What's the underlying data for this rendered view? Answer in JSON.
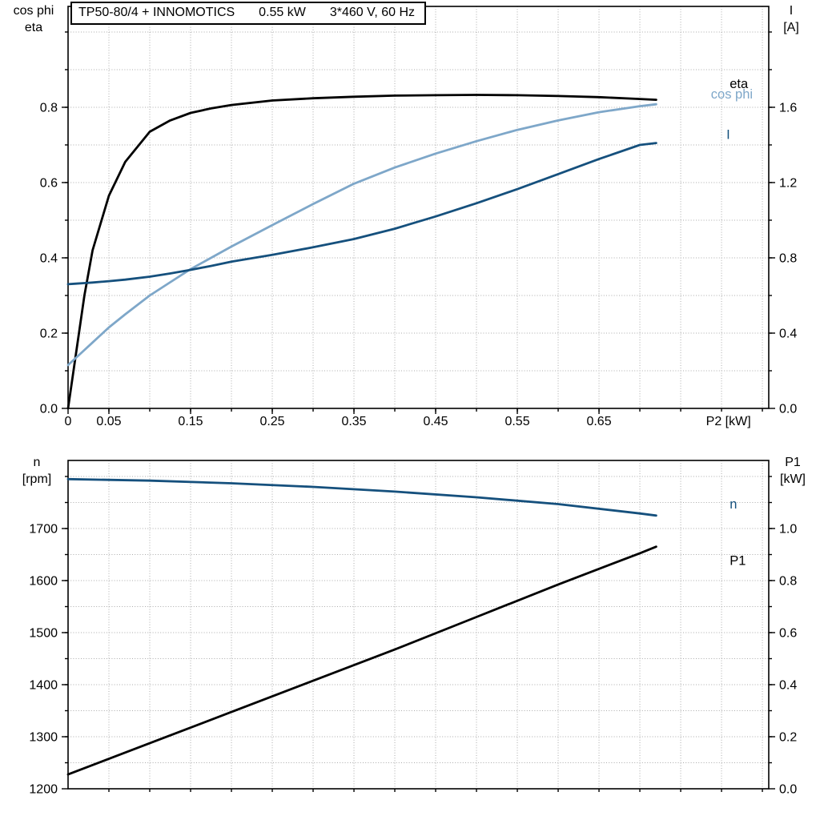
{
  "title_box": {
    "model": "TP50-80/4 + INNOMOTICS",
    "power": "0.55 kW",
    "supply": "3*460 V, 60 Hz"
  },
  "axis_corner_labels": {
    "top_left": [
      "cos phi",
      "eta"
    ],
    "top_right": [
      "I",
      "[A]"
    ],
    "bottom_left": [
      "n",
      "[rpm]"
    ],
    "bottom_right": [
      "P1",
      "[kW]"
    ]
  },
  "colors": {
    "black": "#000000",
    "dark_blue": "#15507d",
    "light_blue": "#7ea7c9",
    "grid": "#ababab"
  },
  "chart_data": [
    {
      "type": "line",
      "title": "TP50-80/4 + INNOMOTICS  0.55 kW  3*460 V, 60 Hz",
      "xlabel": "P2 [kW]",
      "xlabel_x": 0.781,
      "ylabel_left": "cos phi / eta",
      "ylabel_right": "I [A]",
      "xlim": [
        0,
        0.8578
      ],
      "ylim_left": [
        0,
        1.068
      ],
      "ylim_right": [
        0,
        2.136
      ],
      "x_grid_step": 0.05,
      "y_grid_step": 0.1,
      "x_ticks": [
        [
          0,
          "0"
        ],
        [
          0.05,
          "0.05"
        ],
        [
          0.15,
          "0.15"
        ],
        [
          0.25,
          "0.25"
        ],
        [
          0.35,
          "0.35"
        ],
        [
          0.45,
          "0.45"
        ],
        [
          0.55,
          "0.55"
        ],
        [
          0.65,
          "0.65"
        ]
      ],
      "y_ticks_left": [
        [
          0,
          "0.0"
        ],
        [
          0.2,
          "0.2"
        ],
        [
          0.4,
          "0.4"
        ],
        [
          0.6,
          "0.6"
        ],
        [
          0.8,
          "0.8"
        ]
      ],
      "y_ticks_right": [
        [
          0,
          "0.0"
        ],
        [
          0.4,
          "0.4"
        ],
        [
          0.8,
          "0.8"
        ],
        [
          1.2,
          "1.2"
        ],
        [
          1.6,
          "1.6"
        ]
      ],
      "series": [
        {
          "name": "eta",
          "axis": "left",
          "color": "black",
          "x": [
            0,
            0.01,
            0.02,
            0.03,
            0.05,
            0.07,
            0.1,
            0.125,
            0.15,
            0.175,
            0.2,
            0.25,
            0.3,
            0.35,
            0.4,
            0.45,
            0.5,
            0.55,
            0.6,
            0.65,
            0.7,
            0.72
          ],
          "values": [
            0,
            0.15,
            0.3,
            0.42,
            0.565,
            0.655,
            0.735,
            0.765,
            0.785,
            0.797,
            0.806,
            0.818,
            0.824,
            0.828,
            0.831,
            0.832,
            0.833,
            0.832,
            0.83,
            0.827,
            0.822,
            0.82
          ]
        },
        {
          "name": "cos phi",
          "axis": "left",
          "color": "light_blue",
          "x": [
            0,
            0.01,
            0.02,
            0.03,
            0.05,
            0.07,
            0.1,
            0.125,
            0.15,
            0.175,
            0.2,
            0.25,
            0.3,
            0.35,
            0.4,
            0.45,
            0.5,
            0.55,
            0.6,
            0.65,
            0.7,
            0.72
          ],
          "values": [
            0.115,
            0.135,
            0.155,
            0.175,
            0.215,
            0.25,
            0.3,
            0.335,
            0.37,
            0.4,
            0.43,
            0.487,
            0.543,
            0.597,
            0.64,
            0.677,
            0.71,
            0.74,
            0.765,
            0.787,
            0.803,
            0.808
          ]
        },
        {
          "name": "I",
          "axis": "right",
          "color": "dark_blue",
          "x": [
            0,
            0.01,
            0.02,
            0.03,
            0.05,
            0.07,
            0.1,
            0.125,
            0.15,
            0.175,
            0.2,
            0.25,
            0.3,
            0.35,
            0.4,
            0.45,
            0.5,
            0.55,
            0.6,
            0.65,
            0.7,
            0.72
          ],
          "values": [
            0.66,
            0.663,
            0.666,
            0.669,
            0.676,
            0.684,
            0.7,
            0.717,
            0.736,
            0.757,
            0.78,
            0.816,
            0.856,
            0.9,
            0.955,
            1.02,
            1.09,
            1.165,
            1.245,
            1.325,
            1.4,
            1.41
          ]
        }
      ],
      "curve_labels": [
        {
          "text": "eta",
          "x": 0.81,
          "y": 0.862,
          "color": "black"
        },
        {
          "text": "cos phi",
          "x": 0.787,
          "y": 0.834,
          "color": "light_blue"
        },
        {
          "text": "I",
          "x": 0.806,
          "y": 0.727,
          "color": "dark_blue"
        }
      ]
    },
    {
      "type": "line",
      "title": "",
      "xlabel": "",
      "xlabel_x": 0,
      "ylabel_left": "n [rpm]",
      "ylabel_right": "P1 [kW]",
      "xlim": [
        0,
        0.8578
      ],
      "ylim_left": [
        1200,
        1830.8
      ],
      "ylim_right": [
        0,
        1.2615
      ],
      "x_grid_step": 0.05,
      "y_grid_step": 50,
      "x_ticks": [],
      "y_ticks_left": [
        [
          1200,
          "1200"
        ],
        [
          1300,
          "1300"
        ],
        [
          1400,
          "1400"
        ],
        [
          1500,
          "1500"
        ],
        [
          1600,
          "1600"
        ],
        [
          1700,
          "1700"
        ]
      ],
      "y_ticks_right": [
        [
          0,
          "0.0"
        ],
        [
          0.2,
          "0.2"
        ],
        [
          0.4,
          "0.4"
        ],
        [
          0.6,
          "0.6"
        ],
        [
          0.8,
          "0.8"
        ],
        [
          1.0,
          "1.0"
        ]
      ],
      "series": [
        {
          "name": "n",
          "axis": "left",
          "color": "dark_blue",
          "x": [
            0,
            0.1,
            0.2,
            0.3,
            0.4,
            0.5,
            0.6,
            0.7,
            0.72
          ],
          "values": [
            1795,
            1792,
            1787,
            1780,
            1771,
            1760,
            1747,
            1729,
            1725
          ]
        },
        {
          "name": "P1",
          "axis": "right",
          "color": "black",
          "x": [
            0,
            0.1,
            0.2,
            0.3,
            0.4,
            0.5,
            0.6,
            0.7,
            0.72
          ],
          "values": [
            0.055,
            0.175,
            0.295,
            0.415,
            0.535,
            0.66,
            0.785,
            0.905,
            0.93
          ]
        }
      ],
      "curve_labels": [
        {
          "text": "n",
          "x": 0.81,
          "y": 1746,
          "color": "dark_blue"
        },
        {
          "text": "P1",
          "x": 0.81,
          "y": 1638,
          "color": "black"
        }
      ]
    }
  ]
}
